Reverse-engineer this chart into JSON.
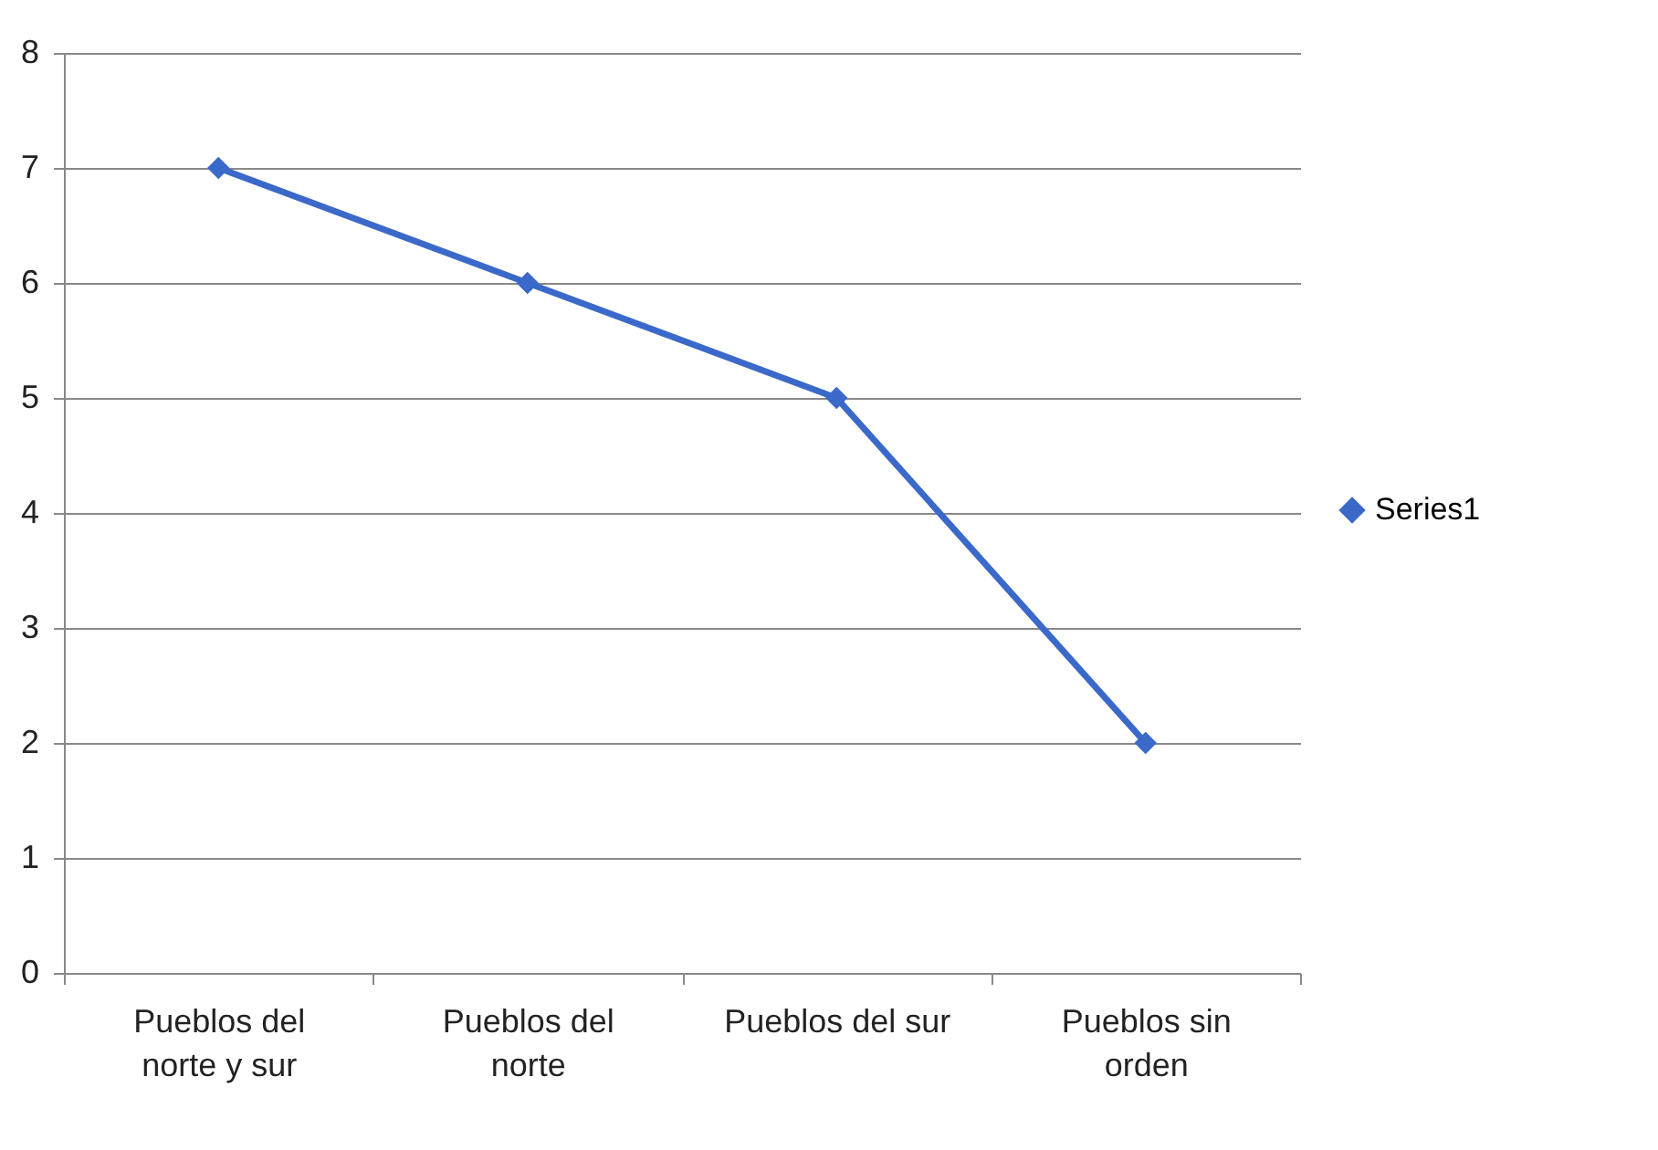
{
  "chart_data": {
    "type": "line",
    "categories": [
      "Pueblos del norte y sur",
      "Pueblos del norte",
      "Pueblos del sur",
      "Pueblos sin orden"
    ],
    "series": [
      {
        "name": "Series1",
        "color": "#3b69c9",
        "values": [
          7,
          6,
          5,
          2
        ]
      }
    ],
    "ylim": [
      0,
      8
    ],
    "yticks": [
      0,
      1,
      2,
      3,
      4,
      5,
      6,
      7,
      8
    ],
    "grid": "y",
    "legend": "right",
    "marker": "diamond",
    "line_style": "solid"
  }
}
